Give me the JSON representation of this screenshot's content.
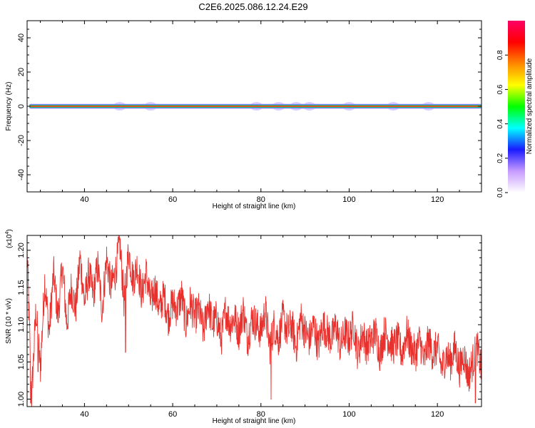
{
  "title": "C2E6.2025.086.12.24.E29",
  "chart_data": [
    {
      "type": "heatmap",
      "xlabel": "Height of straight line (km)",
      "ylabel": "Frequency (Hz)",
      "xlim": [
        27,
        130
      ],
      "ylim": [
        -50,
        50
      ],
      "x_ticks": [
        40,
        60,
        80,
        100,
        120
      ],
      "y_ticks": [
        40,
        20,
        0,
        -20,
        -40
      ],
      "band": {
        "x_start": 27.5,
        "x_end": 130,
        "layers": [
          {
            "level": 0.1,
            "color": "#b9a8ff",
            "halfwidth": 1.4
          },
          {
            "level": 0.25,
            "color": "#1d2cff",
            "halfwidth": 1.0
          },
          {
            "level": 0.4,
            "color": "#00d0d0",
            "halfwidth": 0.8
          },
          {
            "level": 0.55,
            "color": "#22dd22",
            "halfwidth": 0.6
          },
          {
            "level": 0.75,
            "color": "#ff9900",
            "halfwidth": 0.4
          },
          {
            "level": 0.9,
            "color": "#ff1155",
            "halfwidth": 0.2
          }
        ],
        "faint_blobs_x": [
          48,
          55,
          79,
          84,
          88,
          91,
          100,
          110,
          118
        ]
      },
      "colorbar": {
        "label": "Normalized spectral amplitude",
        "range": [
          0,
          1
        ],
        "ticks": [
          "0.0",
          "0.2",
          "0.4",
          "0.6",
          "0.8"
        ],
        "tick_values": [
          0.0,
          0.2,
          0.4,
          0.6,
          0.8
        ],
        "colors": [
          "#ffffff",
          "#c79bff",
          "#1a1aff",
          "#00ffff",
          "#00ff00",
          "#ffff00",
          "#ff8800",
          "#ff0000",
          "#ff0066"
        ]
      }
    },
    {
      "type": "line",
      "xlabel": "Height of straight line (km)",
      "ylabel": "SNR (10 * v/v)",
      "y_multiplier": "(x10",
      "y_multiplier_exp": "4",
      "y_multiplier_close": ")",
      "xlim": [
        27,
        130
      ],
      "ylim": [
        0.99,
        1.22
      ],
      "x_ticks": [
        40,
        60,
        80,
        100,
        120
      ],
      "y_ticks": [
        "1.00",
        "1.05",
        "1.10",
        "1.15",
        "1.20"
      ],
      "y_tick_values": [
        1.0,
        1.05,
        1.1,
        1.15,
        1.2
      ],
      "series": [
        {
          "color": "#e8302c",
          "x": [
            27,
            28,
            29,
            30,
            31,
            32,
            33,
            34,
            35,
            36,
            37,
            38,
            39,
            40,
            41,
            42,
            43,
            44,
            45,
            46,
            47,
            48,
            49,
            50,
            51,
            52,
            53,
            54,
            55,
            56,
            57,
            58,
            59,
            60,
            61,
            62,
            63,
            64,
            65,
            66,
            67,
            68,
            69,
            70,
            71,
            72,
            73,
            74,
            75,
            76,
            77,
            78,
            79,
            80,
            81,
            82,
            83,
            84,
            85,
            86,
            87,
            88,
            89,
            90,
            91,
            92,
            93,
            94,
            95,
            96,
            97,
            98,
            99,
            100,
            101,
            102,
            103,
            104,
            105,
            106,
            107,
            108,
            109,
            110,
            111,
            112,
            113,
            114,
            115,
            116,
            117,
            118,
            119,
            120,
            121,
            122,
            123,
            124,
            125,
            126,
            127,
            128,
            129,
            130
          ],
          "y": [
            1.2,
            1.0,
            1.12,
            1.04,
            1.16,
            1.09,
            1.17,
            1.11,
            1.18,
            1.1,
            1.15,
            1.12,
            1.19,
            1.13,
            1.17,
            1.14,
            1.18,
            1.12,
            1.19,
            1.15,
            1.17,
            1.21,
            1.13,
            1.2,
            1.16,
            1.18,
            1.14,
            1.17,
            1.13,
            1.15,
            1.12,
            1.14,
            1.11,
            1.13,
            1.12,
            1.14,
            1.1,
            1.13,
            1.11,
            1.12,
            1.09,
            1.13,
            1.1,
            1.11,
            1.08,
            1.12,
            1.1,
            1.11,
            1.09,
            1.12,
            1.08,
            1.11,
            1.1,
            1.09,
            1.12,
            1.07,
            1.1,
            1.08,
            1.11,
            1.09,
            1.1,
            1.07,
            1.11,
            1.09,
            1.08,
            1.1,
            1.07,
            1.1,
            1.09,
            1.08,
            1.1,
            1.07,
            1.09,
            1.08,
            1.1,
            1.06,
            1.09,
            1.07,
            1.08,
            1.09,
            1.06,
            1.09,
            1.08,
            1.07,
            1.08,
            1.06,
            1.09,
            1.07,
            1.06,
            1.08,
            1.05,
            1.08,
            1.06,
            1.07,
            1.04,
            1.06,
            1.05,
            1.07,
            1.04,
            1.06,
            1.03,
            1.05,
            1.07,
            1.04
          ],
          "spikes": [
            {
              "x": 27.8,
              "y": 0.995
            },
            {
              "x": 29.5,
              "y": 1.037
            },
            {
              "x": 49.3,
              "y": 1.063
            },
            {
              "x": 82.3,
              "y": 1.0
            },
            {
              "x": 128.6,
              "y": 0.995
            }
          ]
        }
      ]
    }
  ]
}
